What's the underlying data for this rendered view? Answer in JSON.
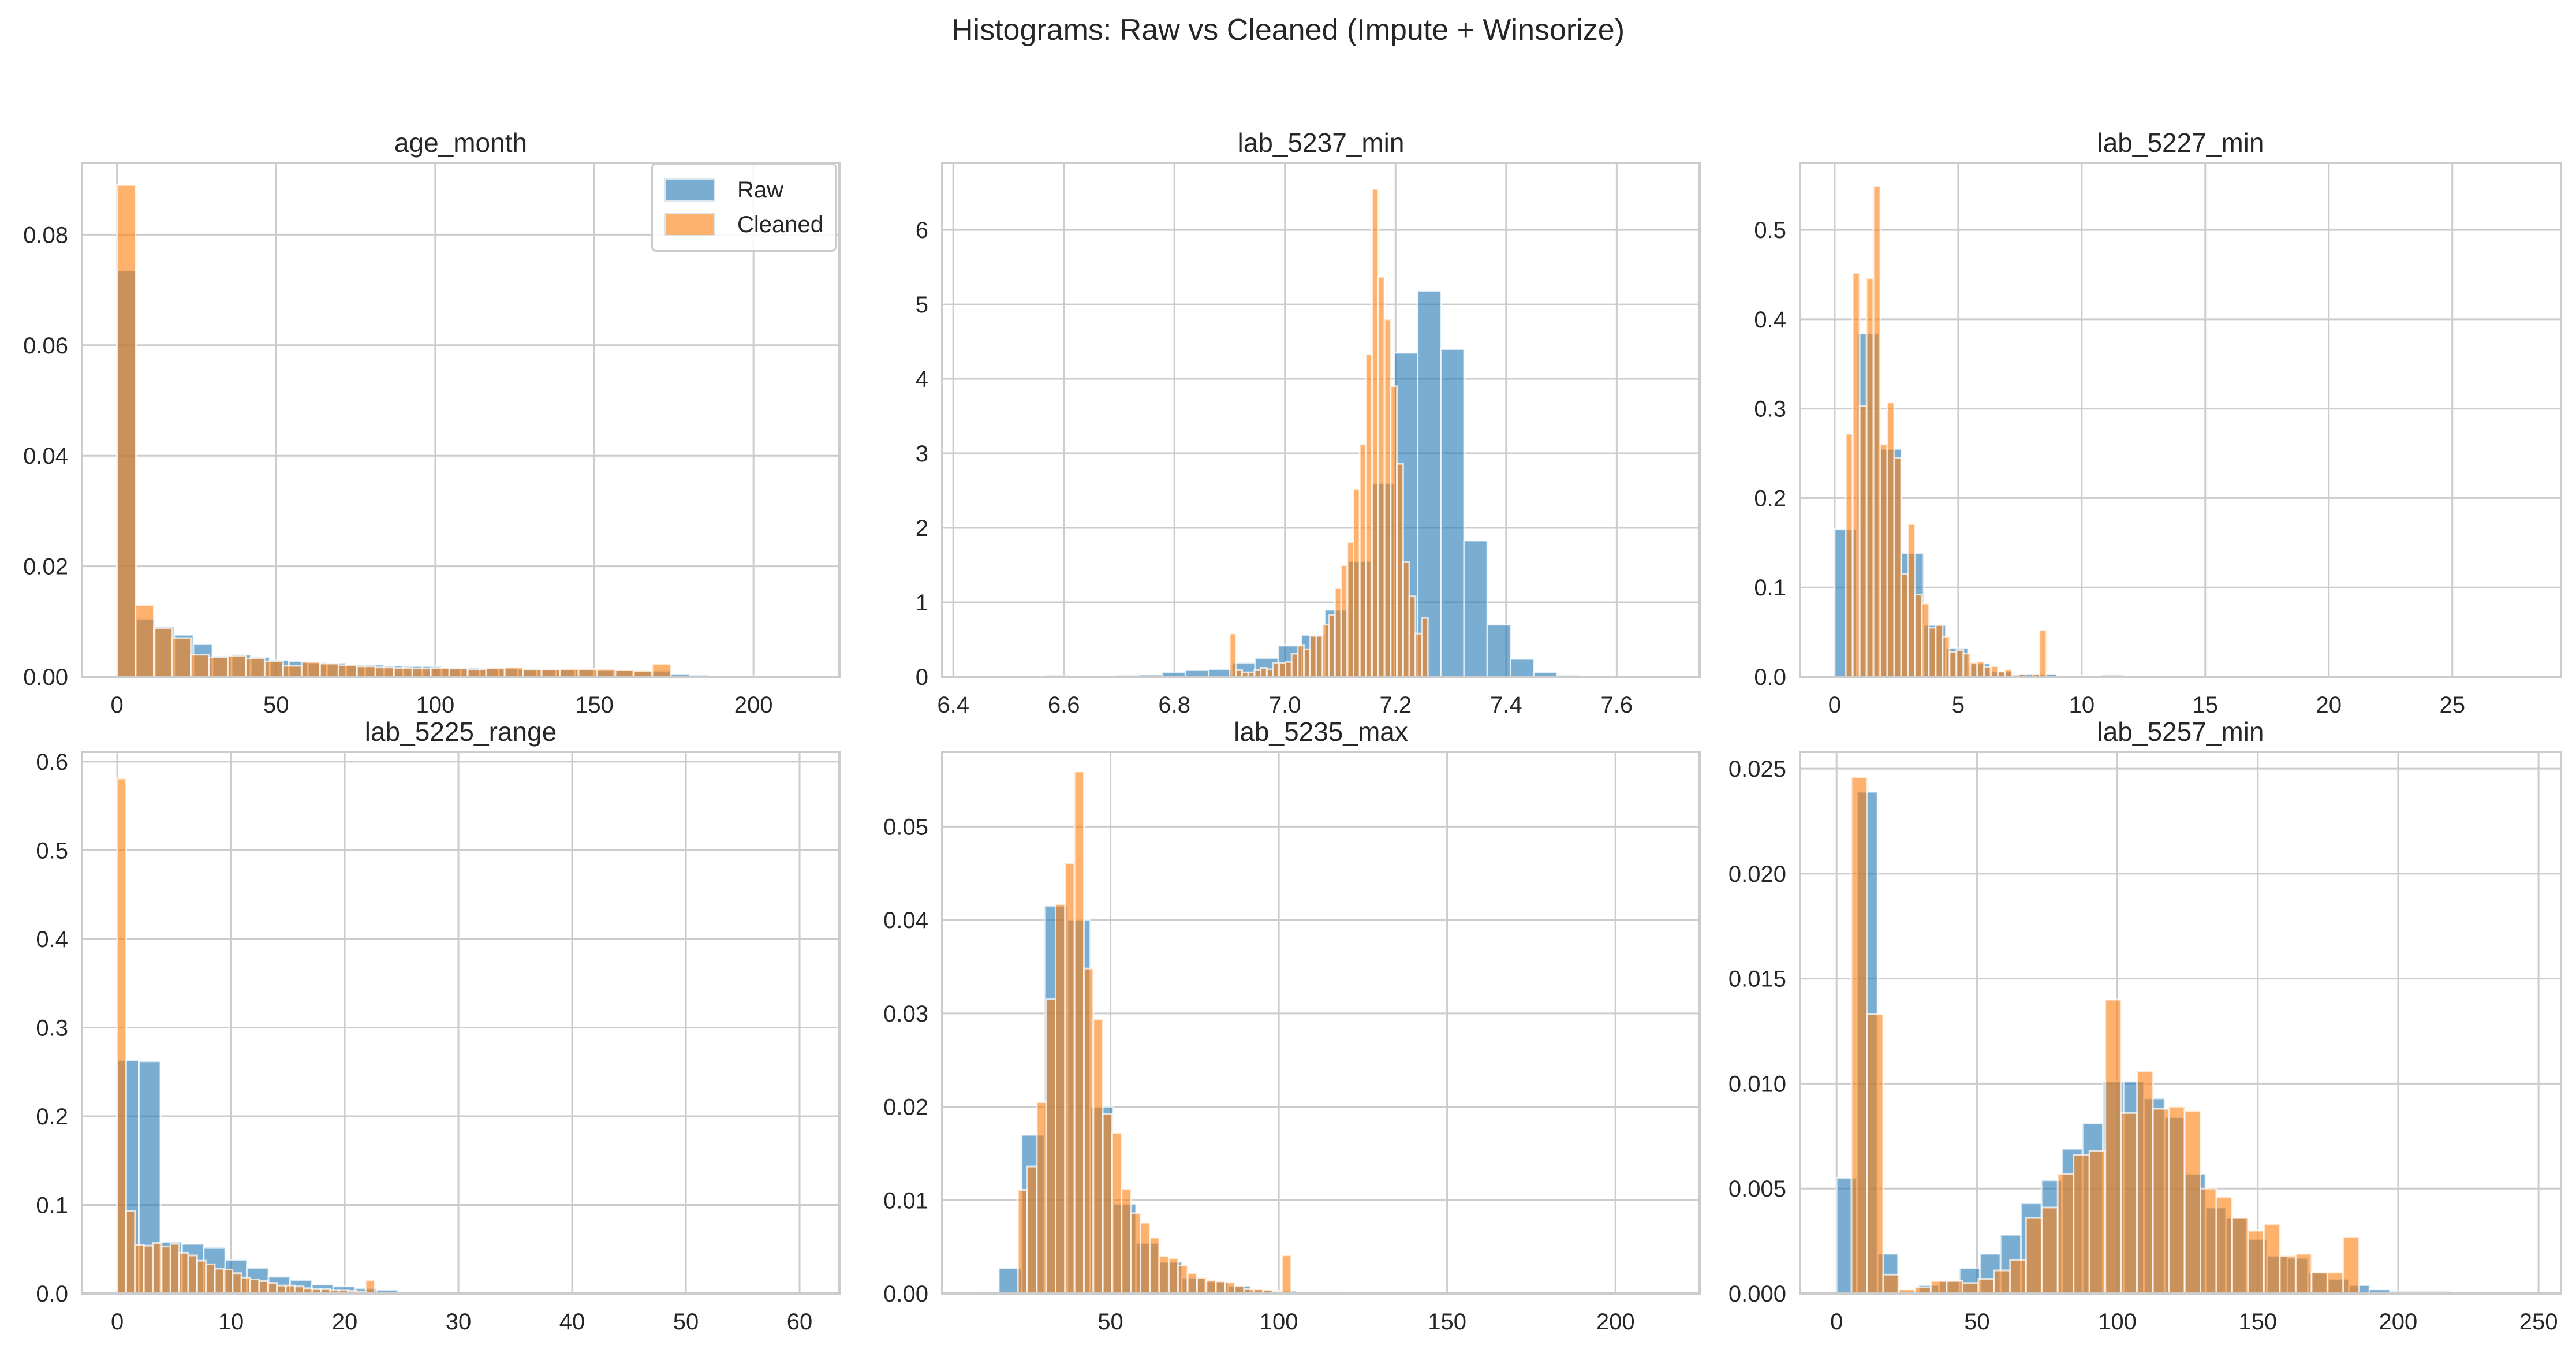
{
  "figure": {
    "suptitle": "Histograms: Raw vs Cleaned (Impute + Winsorize)",
    "legend": {
      "raw_label": "Raw",
      "cleaned_label": "Cleaned"
    },
    "colors": {
      "raw": "#1f77b4",
      "cleaned": "#ff7f0e",
      "grid": "#cccccc",
      "text": "#262626"
    }
  },
  "chart_data": [
    {
      "type": "bar",
      "title": "age_month",
      "xlabel": "",
      "ylabel": "",
      "xlim": [
        -11,
        227
      ],
      "ylim": [
        0,
        0.093
      ],
      "xticks": [
        0,
        50,
        100,
        150,
        200
      ],
      "xtick_labels": [
        "0",
        "50",
        "100",
        "150",
        "200"
      ],
      "yticks": [
        0,
        0.02,
        0.04,
        0.06,
        0.08
      ],
      "ytick_labels": [
        "0.00",
        "0.02",
        "0.04",
        "0.06",
        "0.08"
      ],
      "grid": true,
      "legend_position": "upper right",
      "series": [
        {
          "name": "Raw",
          "bin_start": 0,
          "bin_width": 6.0,
          "values": [
            0.0735,
            0.0105,
            0.0091,
            0.0076,
            0.0059,
            0.0037,
            0.004,
            0.0035,
            0.003,
            0.0028,
            0.0026,
            0.0025,
            0.0022,
            0.0022,
            0.002,
            0.0019,
            0.0019,
            0.0016,
            0.0016,
            0.0015,
            0.0015,
            0.0014,
            0.0013,
            0.0013,
            0.0013,
            0.0012,
            0.0012,
            0.0011,
            0.0011,
            0.0005,
            0.0003,
            0.0002,
            0.0002,
            0.0001,
            0.0001,
            0.0001
          ]
        },
        {
          "name": "Cleaned",
          "bin_start": 0,
          "bin_width": 5.8,
          "values": [
            0.089,
            0.013,
            0.0088,
            0.007,
            0.004,
            0.0035,
            0.0038,
            0.0033,
            0.0028,
            0.002,
            0.0027,
            0.0024,
            0.0021,
            0.0019,
            0.0017,
            0.0016,
            0.0015,
            0.0016,
            0.0015,
            0.0013,
            0.0016,
            0.0017,
            0.0013,
            0.0013,
            0.0014,
            0.0014,
            0.0014,
            0.0012,
            0.0011,
            0.0023
          ]
        }
      ]
    },
    {
      "type": "bar",
      "title": "lab_5237_min",
      "xlabel": "",
      "ylabel": "",
      "xlim": [
        6.38,
        7.75
      ],
      "ylim": [
        0,
        6.9
      ],
      "xticks": [
        6.4,
        6.6,
        6.8,
        7.0,
        7.2,
        7.4,
        7.6
      ],
      "xtick_labels": [
        "6.4",
        "6.6",
        "6.8",
        "7.0",
        "7.2",
        "7.4",
        "7.6"
      ],
      "yticks": [
        0,
        1,
        2,
        3,
        4,
        5,
        6
      ],
      "ytick_labels": [
        "0",
        "1",
        "2",
        "3",
        "4",
        "5",
        "6"
      ],
      "grid": true,
      "series": [
        {
          "name": "Raw",
          "bin_start": 6.4,
          "bin_width": 0.042,
          "values": [
            0,
            0,
            0,
            0,
            0.02,
            0,
            0.01,
            0.02,
            0.03,
            0.06,
            0.09,
            0.1,
            0.19,
            0.25,
            0.42,
            0.56,
            0.9,
            1.55,
            2.6,
            4.35,
            5.18,
            4.4,
            1.83,
            0.7,
            0.24,
            0.06,
            0.02,
            0.01
          ]
        },
        {
          "name": "Cleaned",
          "bin_start": 6.9,
          "bin_width": 0.0112,
          "values": [
            0.58,
            0.09,
            0.06,
            0.06,
            0.09,
            0.12,
            0.1,
            0.19,
            0.19,
            0.2,
            0.31,
            0.42,
            0.37,
            0.55,
            0.55,
            0.7,
            0.83,
            1.19,
            1.5,
            1.81,
            2.52,
            3.12,
            4.33,
            6.55,
            5.37,
            4.8,
            3.9,
            2.86,
            1.54,
            1.08,
            0.58,
            0.79
          ]
        }
      ]
    },
    {
      "type": "bar",
      "title": "lab_5227_min",
      "xlabel": "",
      "ylabel": "",
      "xlim": [
        -1.4,
        29.4
      ],
      "ylim": [
        0,
        0.575
      ],
      "xticks": [
        0,
        5,
        10,
        15,
        20,
        25
      ],
      "xtick_labels": [
        "0",
        "5",
        "10",
        "15",
        "20",
        "25"
      ],
      "yticks": [
        0,
        0.1,
        0.2,
        0.3,
        0.4,
        0.5
      ],
      "ytick_labels": [
        "0.0",
        "0.1",
        "0.2",
        "0.3",
        "0.4",
        "0.5"
      ],
      "grid": true,
      "series": [
        {
          "name": "Raw",
          "bin_start": 0,
          "bin_width": 0.9,
          "values": [
            0.165,
            0.384,
            0.255,
            0.138,
            0.058,
            0.032,
            0.015,
            0.006,
            0.003,
            0.003,
            0.001,
            0.001,
            0.002,
            0.0005,
            0.0005,
            0.0005
          ]
        },
        {
          "name": "Cleaned",
          "bin_start": 0.45,
          "bin_width": 0.28,
          "values": [
            0.272,
            0.452,
            0.303,
            0.446,
            0.549,
            0.26,
            0.307,
            0.245,
            0.115,
            0.171,
            0.092,
            0.082,
            0.055,
            0.058,
            0.045,
            0.028,
            0.03,
            0.026,
            0.016,
            0.017,
            0.011,
            0.012,
            0.006,
            0.008,
            0.002,
            0.003,
            0.0,
            0.003,
            0.052
          ]
        }
      ]
    },
    {
      "type": "bar",
      "title": "lab_5225_range",
      "xlabel": "",
      "ylabel": "",
      "xlim": [
        -3.1,
        63.5
      ],
      "ylim": [
        0,
        0.611
      ],
      "xticks": [
        0,
        10,
        20,
        30,
        40,
        50,
        60
      ],
      "xtick_labels": [
        "0",
        "10",
        "20",
        "30",
        "40",
        "50",
        "60"
      ],
      "yticks": [
        0,
        0.1,
        0.2,
        0.3,
        0.4,
        0.5,
        0.6
      ],
      "ytick_labels": [
        "0.0",
        "0.1",
        "0.2",
        "0.3",
        "0.4",
        "0.5",
        "0.6"
      ],
      "grid": true,
      "series": [
        {
          "name": "Raw",
          "bin_start": 0,
          "bin_width": 1.9,
          "values": [
            0.263,
            0.262,
            0.058,
            0.056,
            0.052,
            0.038,
            0.029,
            0.019,
            0.015,
            0.01,
            0.008,
            0.006,
            0.004,
            0.002,
            0.002,
            0.001,
            0.0005,
            0.0005
          ]
        },
        {
          "name": "Cleaned",
          "bin_start": 0,
          "bin_width": 0.78,
          "values": [
            0.581,
            0.093,
            0.055,
            0.054,
            0.057,
            0.053,
            0.056,
            0.046,
            0.043,
            0.037,
            0.033,
            0.028,
            0.027,
            0.023,
            0.018,
            0.016,
            0.014,
            0.012,
            0.009,
            0.009,
            0.008,
            0.006,
            0.005,
            0.005,
            0.004,
            0.004,
            0.003,
            0.002,
            0.015
          ]
        }
      ]
    },
    {
      "type": "bar",
      "title": "lab_5235_max",
      "xlabel": "",
      "ylabel": "",
      "xlim": [
        0,
        225
      ],
      "ylim": [
        0,
        0.058
      ],
      "xticks": [
        50,
        100,
        150,
        200
      ],
      "xtick_labels": [
        "50",
        "100",
        "150",
        "200"
      ],
      "yticks": [
        0,
        0.01,
        0.02,
        0.03,
        0.04,
        0.05
      ],
      "ytick_labels": [
        "0.00",
        "0.01",
        "0.02",
        "0.03",
        "0.04",
        "0.05"
      ],
      "grid": true,
      "series": [
        {
          "name": "Raw",
          "bin_start": 10,
          "bin_width": 6.8,
          "values": [
            0.0002,
            0.0027,
            0.017,
            0.0415,
            0.04,
            0.02,
            0.0096,
            0.0054,
            0.0034,
            0.0017,
            0.0013,
            0.0008,
            0.0004,
            0.0003,
            0.0002,
            0.0002,
            0.0001,
            0.0001,
            0.0001
          ]
        },
        {
          "name": "Cleaned",
          "bin_start": 22.5,
          "bin_width": 2.8,
          "values": [
            0.0111,
            0.0136,
            0.0205,
            0.0315,
            0.0417,
            0.0461,
            0.0559,
            0.0348,
            0.0294,
            0.0192,
            0.0172,
            0.0112,
            0.0086,
            0.0076,
            0.006,
            0.004,
            0.0038,
            0.003,
            0.0022,
            0.0017,
            0.0014,
            0.0013,
            0.0012,
            0.0008,
            0.0005,
            0.0005,
            0.0004,
            0.0002,
            0.0041
          ]
        }
      ]
    },
    {
      "type": "bar",
      "title": "lab_5257_min",
      "xlabel": "",
      "ylabel": "",
      "xlim": [
        -13,
        258
      ],
      "ylim": [
        0,
        0.0258
      ],
      "xticks": [
        0,
        50,
        100,
        150,
        200,
        250
      ],
      "xtick_labels": [
        "0",
        "50",
        "100",
        "150",
        "200",
        "250"
      ],
      "yticks": [
        0,
        0.005,
        0.01,
        0.015,
        0.02,
        0.025
      ],
      "ytick_labels": [
        "0.000",
        "0.005",
        "0.010",
        "0.015",
        "0.020",
        "0.025"
      ],
      "grid": true,
      "series": [
        {
          "name": "Raw",
          "bin_start": 0,
          "bin_width": 7.3,
          "values": [
            0.0055,
            0.0239,
            0.0019,
            0.0001,
            0.0004,
            0.0006,
            0.0012,
            0.0019,
            0.0028,
            0.0043,
            0.0054,
            0.0069,
            0.0081,
            0.0101,
            0.0101,
            0.0093,
            0.0084,
            0.0057,
            0.0041,
            0.0036,
            0.0026,
            0.0018,
            0.0017,
            0.001,
            0.0007,
            0.0004,
            0.0002,
            0.0001,
            0.0001,
            0.0001
          ]
        },
        {
          "name": "Cleaned",
          "bin_start": 5.3,
          "bin_width": 5.65,
          "values": [
            0.0246,
            0.0133,
            0.0009,
            0.0002,
            0.0003,
            0.0006,
            0.0006,
            0.0005,
            0.0007,
            0.0011,
            0.0016,
            0.0036,
            0.0041,
            0.0057,
            0.0066,
            0.0068,
            0.014,
            0.0086,
            0.0106,
            0.0088,
            0.0089,
            0.0087,
            0.005,
            0.0046,
            0.0036,
            0.003,
            0.0033,
            0.0018,
            0.0019,
            0.001,
            0.001,
            0.0027
          ]
        }
      ]
    }
  ]
}
